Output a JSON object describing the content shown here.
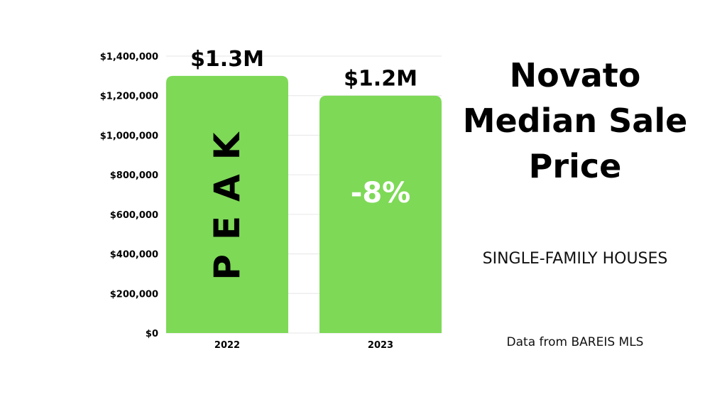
{
  "colors": {
    "bar": "#7ed957",
    "grid": "#e6e6e6",
    "text": "#000000",
    "inner_label_2023": "#ffffff"
  },
  "chart_data": {
    "type": "bar",
    "categories": [
      "2022",
      "2023"
    ],
    "values": [
      1300000,
      1200000
    ],
    "value_labels": [
      "$1.3M",
      "$1.2M"
    ],
    "inner_labels": [
      "PEAK",
      "-8%"
    ],
    "ylim": [
      0,
      1400000
    ],
    "yticks": [
      0,
      200000,
      400000,
      600000,
      800000,
      1000000,
      1200000,
      1400000
    ],
    "ytick_labels": [
      "$0",
      "$200,000",
      "$400,000",
      "$600,000",
      "$800,000",
      "$1,000,000",
      "$1,200,000",
      "$1,400,000"
    ],
    "grid": true
  },
  "title": {
    "lines": [
      "Novato",
      "Median Sale",
      "Price"
    ]
  },
  "subtitle": "SINGLE-FAMILY HOUSES",
  "source": "Data from BAREIS MLS"
}
